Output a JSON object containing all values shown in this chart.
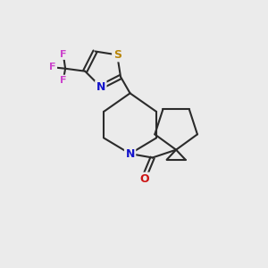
{
  "bg_color": "#ebebeb",
  "bond_color": "#2b2b2b",
  "S_color": "#b8860b",
  "N_color": "#1414cc",
  "O_color": "#cc1414",
  "F_color": "#cc44cc",
  "line_width": 1.5,
  "font_size_atom": 8.5,
  "figsize": [
    3.0,
    3.0
  ],
  "dpi": 100,
  "xlim": [
    0,
    10
  ],
  "ylim": [
    0,
    10
  ]
}
